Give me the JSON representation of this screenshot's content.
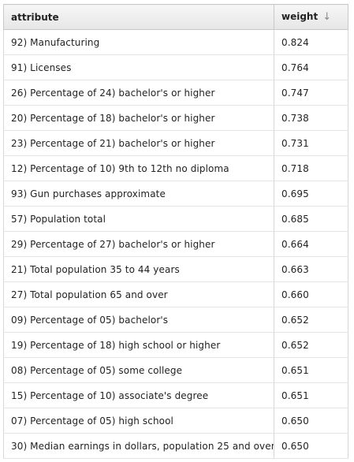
{
  "table": {
    "headers": {
      "attribute": "attribute",
      "weight": "weight",
      "sort_icon_glyph": "↓"
    },
    "sort_icon": "arrow-down-icon",
    "rows": [
      {
        "attribute": "92) Manufacturing",
        "weight": "0.824"
      },
      {
        "attribute": "91) Licenses",
        "weight": "0.764"
      },
      {
        "attribute": "26) Percentage of 24) bachelor's or higher",
        "weight": "0.747"
      },
      {
        "attribute": "20) Percentage of 18) bachelor's or higher",
        "weight": "0.738"
      },
      {
        "attribute": "23) Percentage of 21) bachelor's or higher",
        "weight": "0.731"
      },
      {
        "attribute": "12) Percentage of 10) 9th to 12th no diploma",
        "weight": "0.718"
      },
      {
        "attribute": "93) Gun purchases approximate",
        "weight": "0.695"
      },
      {
        "attribute": "57) Population total",
        "weight": "0.685"
      },
      {
        "attribute": "29) Percentage of 27) bachelor's or higher",
        "weight": "0.664"
      },
      {
        "attribute": "21) Total population 35 to 44 years",
        "weight": "0.663"
      },
      {
        "attribute": "27) Total population 65 and over",
        "weight": "0.660"
      },
      {
        "attribute": "09) Percentage of 05) bachelor's",
        "weight": "0.652"
      },
      {
        "attribute": "19) Percentage of 18) high school or higher",
        "weight": "0.652"
      },
      {
        "attribute": "08) Percentage of 05) some college",
        "weight": "0.651"
      },
      {
        "attribute": "15) Percentage of 10) associate's degree",
        "weight": "0.651"
      },
      {
        "attribute": "07) Percentage of 05) high school",
        "weight": "0.650"
      },
      {
        "attribute": "30) Median earnings in dollars, population 25 and over",
        "weight": "0.650"
      }
    ]
  }
}
